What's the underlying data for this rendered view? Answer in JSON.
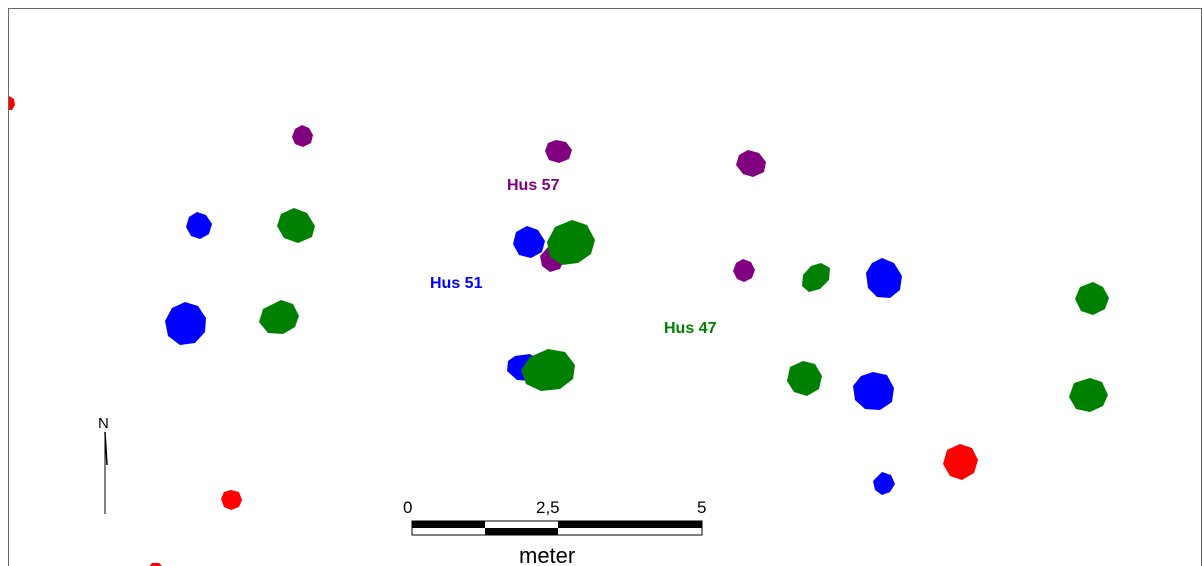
{
  "colors": {
    "hus57": "#800080",
    "hus51": "#0000ff",
    "hus47": "#008000",
    "other": "#ff0000"
  },
  "labels": {
    "hus57": "Hus 57",
    "hus51": "Hus 51",
    "hus47": "Hus 47"
  },
  "north_arrow": {
    "label": "N"
  },
  "scale_bar": {
    "ticks": [
      "0",
      "2,5",
      "5"
    ],
    "unit": "meter"
  }
}
